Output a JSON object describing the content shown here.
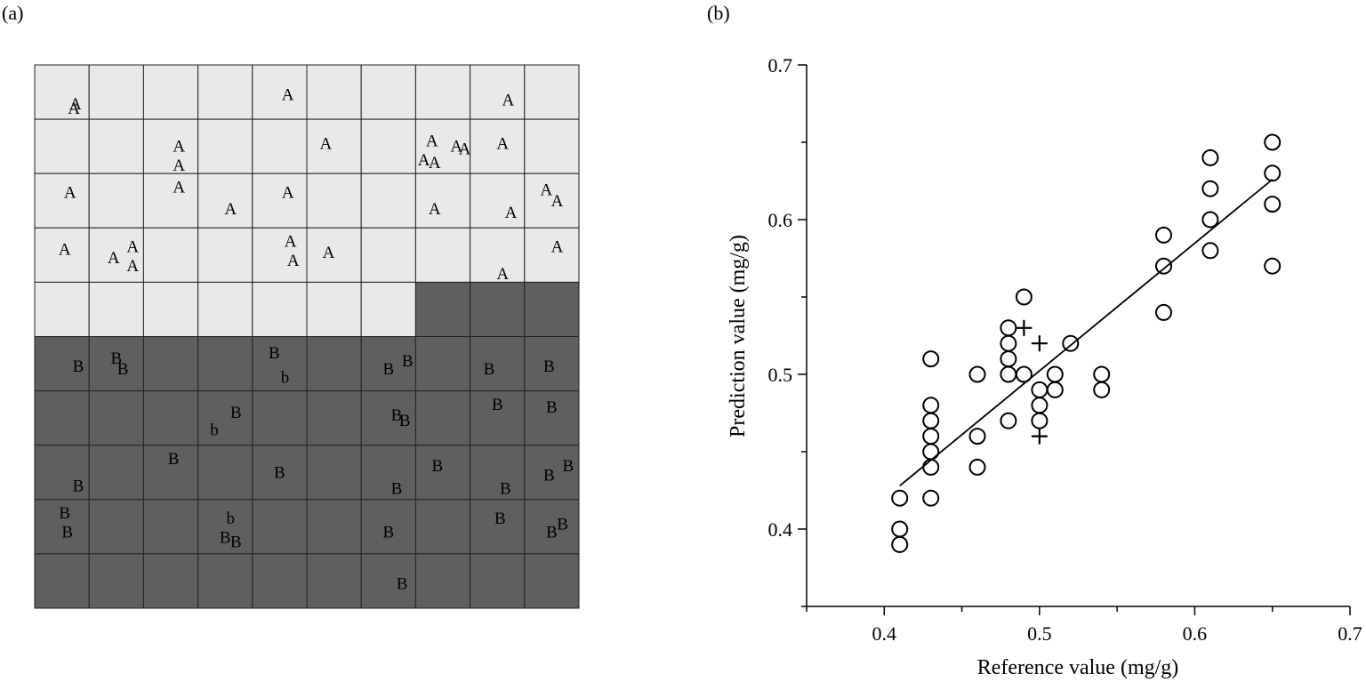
{
  "panel_a": {
    "label": "(a)",
    "chart_data": {
      "type": "table",
      "grid": {
        "rows": 10,
        "cols": 10,
        "shown": true
      },
      "colors": {
        "region_a": "#e9e9e9",
        "region_b": "#5f5f5f",
        "gridline": "#222222"
      },
      "region_b_cells": [
        [
          4,
          7
        ],
        [
          4,
          8
        ],
        [
          4,
          9
        ],
        [
          5,
          0
        ],
        [
          5,
          1
        ],
        [
          5,
          2
        ],
        [
          5,
          3
        ],
        [
          5,
          4
        ],
        [
          5,
          5
        ],
        [
          5,
          6
        ],
        [
          5,
          7
        ],
        [
          5,
          8
        ],
        [
          5,
          9
        ],
        [
          6,
          0
        ],
        [
          6,
          1
        ],
        [
          6,
          2
        ],
        [
          6,
          3
        ],
        [
          6,
          4
        ],
        [
          6,
          5
        ],
        [
          6,
          6
        ],
        [
          6,
          7
        ],
        [
          6,
          8
        ],
        [
          6,
          9
        ],
        [
          7,
          0
        ],
        [
          7,
          1
        ],
        [
          7,
          2
        ],
        [
          7,
          3
        ],
        [
          7,
          4
        ],
        [
          7,
          5
        ],
        [
          7,
          6
        ],
        [
          7,
          7
        ],
        [
          7,
          8
        ],
        [
          7,
          9
        ],
        [
          8,
          0
        ],
        [
          8,
          1
        ],
        [
          8,
          2
        ],
        [
          8,
          3
        ],
        [
          8,
          4
        ],
        [
          8,
          5
        ],
        [
          8,
          6
        ],
        [
          8,
          7
        ],
        [
          8,
          8
        ],
        [
          8,
          9
        ],
        [
          9,
          0
        ],
        [
          9,
          1
        ],
        [
          9,
          2
        ],
        [
          9,
          3
        ],
        [
          9,
          4
        ],
        [
          9,
          5
        ],
        [
          9,
          6
        ],
        [
          9,
          7
        ],
        [
          9,
          8
        ],
        [
          9,
          9
        ]
      ],
      "samples": [
        {
          "t": "A",
          "c": 0.75,
          "r": 0.72
        },
        {
          "t": "A",
          "c": 0.72,
          "r": 0.8
        },
        {
          "t": "A",
          "c": 4.65,
          "r": 0.55
        },
        {
          "t": "A",
          "c": 8.7,
          "r": 0.65
        },
        {
          "t": "A",
          "c": 2.65,
          "r": 1.5
        },
        {
          "t": "A",
          "c": 2.65,
          "r": 1.85
        },
        {
          "t": "A",
          "c": 5.35,
          "r": 1.45
        },
        {
          "t": "A",
          "c": 7.3,
          "r": 1.4
        },
        {
          "t": "A",
          "c": 7.15,
          "r": 1.75
        },
        {
          "t": "A",
          "c": 7.35,
          "r": 1.8
        },
        {
          "t": "A",
          "c": 7.75,
          "r": 1.5
        },
        {
          "t": "A",
          "c": 7.9,
          "r": 1.55
        },
        {
          "t": "A",
          "c": 8.6,
          "r": 1.45
        },
        {
          "t": "A",
          "c": 0.65,
          "r": 2.35
        },
        {
          "t": "A",
          "c": 2.65,
          "r": 2.25
        },
        {
          "t": "A",
          "c": 3.6,
          "r": 2.65
        },
        {
          "t": "A",
          "c": 4.65,
          "r": 2.35
        },
        {
          "t": "A",
          "c": 7.35,
          "r": 2.65
        },
        {
          "t": "A",
          "c": 8.75,
          "r": 2.72
        },
        {
          "t": "A",
          "c": 9.4,
          "r": 2.3
        },
        {
          "t": "A",
          "c": 9.6,
          "r": 2.5
        },
        {
          "t": "A",
          "c": 0.55,
          "r": 3.4
        },
        {
          "t": "A",
          "c": 1.45,
          "r": 3.55
        },
        {
          "t": "A",
          "c": 1.8,
          "r": 3.35
        },
        {
          "t": "A",
          "c": 1.8,
          "r": 3.7
        },
        {
          "t": "A",
          "c": 4.7,
          "r": 3.25
        },
        {
          "t": "A",
          "c": 4.75,
          "r": 3.6
        },
        {
          "t": "A",
          "c": 5.4,
          "r": 3.45
        },
        {
          "t": "A",
          "c": 8.6,
          "r": 3.85
        },
        {
          "t": "A",
          "c": 9.6,
          "r": 3.35
        },
        {
          "t": "B",
          "c": 0.8,
          "r": 5.55
        },
        {
          "t": "B",
          "c": 1.5,
          "r": 5.4
        },
        {
          "t": "B",
          "c": 1.62,
          "r": 5.6
        },
        {
          "t": "B",
          "c": 4.4,
          "r": 5.3
        },
        {
          "t": "b",
          "c": 4.6,
          "r": 5.75
        },
        {
          "t": "B",
          "c": 6.5,
          "r": 5.6
        },
        {
          "t": "B",
          "c": 6.85,
          "r": 5.45
        },
        {
          "t": "B",
          "c": 8.35,
          "r": 5.6
        },
        {
          "t": "B",
          "c": 9.45,
          "r": 5.55
        },
        {
          "t": "B",
          "c": 3.7,
          "r": 6.4
        },
        {
          "t": "b",
          "c": 3.3,
          "r": 6.72
        },
        {
          "t": "B",
          "c": 6.65,
          "r": 6.45
        },
        {
          "t": "B",
          "c": 6.8,
          "r": 6.55
        },
        {
          "t": "B",
          "c": 8.5,
          "r": 6.25
        },
        {
          "t": "B",
          "c": 9.5,
          "r": 6.3
        },
        {
          "t": "B",
          "c": 2.55,
          "r": 7.25
        },
        {
          "t": "B",
          "c": 4.5,
          "r": 7.5
        },
        {
          "t": "B",
          "c": 0.8,
          "r": 7.75
        },
        {
          "t": "B",
          "c": 7.4,
          "r": 7.38
        },
        {
          "t": "B",
          "c": 6.65,
          "r": 7.8
        },
        {
          "t": "B",
          "c": 8.65,
          "r": 7.8
        },
        {
          "t": "B",
          "c": 9.45,
          "r": 7.55
        },
        {
          "t": "B",
          "c": 9.8,
          "r": 7.38
        },
        {
          "t": "B",
          "c": 0.55,
          "r": 8.25
        },
        {
          "t": "B",
          "c": 0.6,
          "r": 8.6
        },
        {
          "t": "b",
          "c": 3.6,
          "r": 8.35
        },
        {
          "t": "B",
          "c": 3.5,
          "r": 8.7
        },
        {
          "t": "B",
          "c": 3.7,
          "r": 8.78
        },
        {
          "t": "B",
          "c": 6.5,
          "r": 8.6
        },
        {
          "t": "B",
          "c": 8.55,
          "r": 8.35
        },
        {
          "t": "B",
          "c": 9.5,
          "r": 8.6
        },
        {
          "t": "B",
          "c": 9.7,
          "r": 8.45
        },
        {
          "t": "B",
          "c": 6.75,
          "r": 9.55
        }
      ]
    }
  },
  "panel_b": {
    "label": "(b)",
    "chart_data": {
      "type": "scatter",
      "title": "",
      "xlabel": "Reference value (mg/g)",
      "ylabel": "Prediction value (mg/g)",
      "xlim": [
        0.35,
        0.7
      ],
      "ylim": [
        0.35,
        0.7
      ],
      "x_ticks": [
        "0.4",
        "0.5",
        "0.6",
        "0.7"
      ],
      "y_ticks": [
        "0.4",
        "0.5",
        "0.6",
        "0.7"
      ],
      "grid": false,
      "fit_line": {
        "x": [
          0.41,
          0.65
        ],
        "y": [
          0.428,
          0.626
        ]
      },
      "series": [
        {
          "marker": "circle",
          "points": [
            [
              0.41,
              0.42
            ],
            [
              0.41,
              0.4
            ],
            [
              0.41,
              0.39
            ],
            [
              0.43,
              0.51
            ],
            [
              0.43,
              0.48
            ],
            [
              0.43,
              0.47
            ],
            [
              0.43,
              0.46
            ],
            [
              0.43,
              0.45
            ],
            [
              0.43,
              0.44
            ],
            [
              0.43,
              0.42
            ],
            [
              0.46,
              0.5
            ],
            [
              0.46,
              0.46
            ],
            [
              0.46,
              0.44
            ],
            [
              0.48,
              0.53
            ],
            [
              0.48,
              0.52
            ],
            [
              0.48,
              0.51
            ],
            [
              0.48,
              0.5
            ],
            [
              0.48,
              0.47
            ],
            [
              0.49,
              0.55
            ],
            [
              0.49,
              0.5
            ],
            [
              0.5,
              0.49
            ],
            [
              0.5,
              0.48
            ],
            [
              0.5,
              0.47
            ],
            [
              0.51,
              0.5
            ],
            [
              0.51,
              0.49
            ],
            [
              0.52,
              0.52
            ],
            [
              0.54,
              0.5
            ],
            [
              0.54,
              0.49
            ],
            [
              0.58,
              0.59
            ],
            [
              0.58,
              0.57
            ],
            [
              0.58,
              0.54
            ],
            [
              0.61,
              0.64
            ],
            [
              0.61,
              0.62
            ],
            [
              0.61,
              0.6
            ],
            [
              0.61,
              0.58
            ],
            [
              0.65,
              0.65
            ],
            [
              0.65,
              0.63
            ],
            [
              0.65,
              0.61
            ],
            [
              0.65,
              0.57
            ]
          ]
        },
        {
          "marker": "plus",
          "points": [
            [
              0.49,
              0.53
            ],
            [
              0.5,
              0.52
            ],
            [
              0.5,
              0.46
            ]
          ]
        }
      ]
    }
  }
}
